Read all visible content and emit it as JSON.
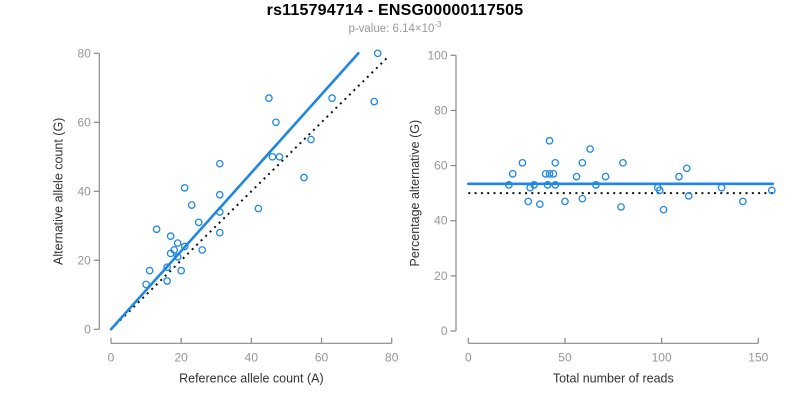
{
  "header": {
    "title": "rs115794714 - ENSG00000117505",
    "subtitle_prefix": "p-value: ",
    "subtitle_mantissa": "6.14×10",
    "subtitle_exponent": "-3"
  },
  "colors": {
    "points": "#1E87E5",
    "fit_line": "#1E87E5",
    "reference_line": "#111111",
    "axis": "#898989",
    "tick_labels": "#969696",
    "axis_titles": "#333333",
    "title": "#000000",
    "subtitle": "#999999",
    "background": "#FFFFFF"
  },
  "chart_data": [
    {
      "id": "allele-count-scatter",
      "type": "scatter",
      "xlabel": "Reference allele count (A)",
      "ylabel": "Alternative allele count (G)",
      "xlim": [
        0,
        80
      ],
      "ylim": [
        0,
        80
      ],
      "xticks": [
        0,
        20,
        40,
        60,
        80
      ],
      "yticks": [
        0,
        20,
        40,
        60,
        80
      ],
      "grid": false,
      "legend": "none",
      "points": [
        [
          10,
          13
        ],
        [
          11,
          17
        ],
        [
          13,
          29
        ],
        [
          16,
          14
        ],
        [
          16,
          18
        ],
        [
          17,
          22
        ],
        [
          17,
          27
        ],
        [
          18,
          23
        ],
        [
          19,
          21
        ],
        [
          19,
          25
        ],
        [
          20,
          17
        ],
        [
          21,
          24
        ],
        [
          21,
          41
        ],
        [
          23,
          36
        ],
        [
          25,
          31
        ],
        [
          26,
          23
        ],
        [
          31,
          28
        ],
        [
          31,
          34
        ],
        [
          31,
          39
        ],
        [
          31,
          48
        ],
        [
          42,
          35
        ],
        [
          45,
          67
        ],
        [
          46,
          50
        ],
        [
          47,
          60
        ],
        [
          48,
          50
        ],
        [
          55,
          44
        ],
        [
          57,
          55
        ],
        [
          63,
          67
        ],
        [
          75,
          66
        ],
        [
          76,
          80
        ]
      ],
      "lines": [
        {
          "name": "identity-line",
          "style": "dotted",
          "color": "#111111",
          "width": 2,
          "x1": 0,
          "y1": 0,
          "x2": 79,
          "y2": 79
        },
        {
          "name": "fit-line",
          "style": "solid",
          "color": "#1E87E5",
          "width": 2.6,
          "x1": 0,
          "y1": 0,
          "x2": 70.5,
          "y2": 80
        }
      ]
    },
    {
      "id": "percentage-scatter",
      "type": "scatter",
      "xlabel": "Total number of reads",
      "ylabel": "Percentage alternative (G)",
      "xlim": [
        0,
        160
      ],
      "ylim": [
        0,
        100
      ],
      "xticks": [
        0,
        50,
        100,
        150
      ],
      "yticks": [
        0,
        20,
        40,
        60,
        80,
        100
      ],
      "grid": false,
      "legend": "none",
      "points": [
        [
          21,
          53
        ],
        [
          23,
          57
        ],
        [
          28,
          61
        ],
        [
          31,
          47
        ],
        [
          32,
          52
        ],
        [
          34,
          53
        ],
        [
          37,
          46
        ],
        [
          40,
          57
        ],
        [
          41,
          53
        ],
        [
          42,
          57
        ],
        [
          42,
          69
        ],
        [
          44,
          57
        ],
        [
          45,
          53
        ],
        [
          45,
          61
        ],
        [
          50,
          47
        ],
        [
          56,
          56
        ],
        [
          59,
          48
        ],
        [
          59,
          61
        ],
        [
          63,
          66
        ],
        [
          66,
          53
        ],
        [
          71,
          56
        ],
        [
          79,
          45
        ],
        [
          80,
          61
        ],
        [
          98,
          52
        ],
        [
          99,
          51
        ],
        [
          101,
          44
        ],
        [
          109,
          56
        ],
        [
          113,
          59
        ],
        [
          114,
          49
        ],
        [
          131,
          52
        ],
        [
          142,
          47
        ],
        [
          157,
          51
        ]
      ],
      "lines": [
        {
          "name": "null-line",
          "style": "dotted",
          "color": "#111111",
          "width": 2,
          "x1": 0,
          "y1": 50,
          "x2": 157.5,
          "y2": 50
        },
        {
          "name": "fit-line",
          "style": "solid",
          "color": "#1E87E5",
          "width": 2.6,
          "x1": 0,
          "y1": 53.4,
          "x2": 157.5,
          "y2": 53.4
        }
      ]
    }
  ]
}
